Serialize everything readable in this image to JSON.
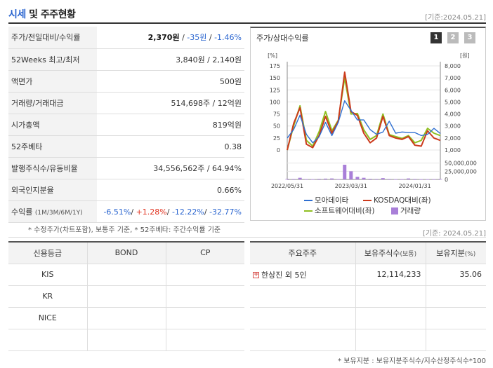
{
  "header": {
    "title_accent": "시세",
    "title_rest": " 및 주주현황",
    "base_date": "[기준:2024.05.21]"
  },
  "quote": {
    "price_change": {
      "label": "주가/전일대비/수익률",
      "price": "2,370원",
      "change": "-35원",
      "rate": "-1.46%"
    },
    "week52": {
      "label": "52Weeks 최고/최저",
      "value": "3,840원 / 2,140원"
    },
    "par": {
      "label": "액면가",
      "value": "500원"
    },
    "volume": {
      "label": "거래량/거래대금",
      "value": "514,698주 / 12억원"
    },
    "mktcap": {
      "label": "시가총액",
      "value": "819억원"
    },
    "beta": {
      "label": "52주베타",
      "value": "0.38"
    },
    "shares": {
      "label": "발행주식수/유동비율",
      "value": "34,556,562주 / 64.94%"
    },
    "foreign": {
      "label": "외국인지분율",
      "value": "0.66%"
    },
    "returns": {
      "label": "수익률",
      "label_sub": "(1M/3M/6M/1Y)",
      "r1": "-6.51%",
      "r2": "+1.28%",
      "r3": "-12.22%",
      "r4": "-32.77%"
    }
  },
  "chart_panel": {
    "title": "주가/상대수익률",
    "tabs": [
      "1",
      "2",
      "3"
    ]
  },
  "chart_data": {
    "type": "line",
    "x": [
      "2022/05/31",
      "2022/06/30",
      "2022/07/31",
      "2022/08/31",
      "2022/09/30",
      "2022/10/31",
      "2022/11/30",
      "2022/12/31",
      "2023/01/31",
      "2023/02/28",
      "2023/03/31",
      "2023/04/30",
      "2023/05/31",
      "2023/06/30",
      "2023/07/31",
      "2023/08/31",
      "2023/09/30",
      "2023/10/31",
      "2023/11/30",
      "2023/12/31",
      "2024/01/31",
      "2024/02/29",
      "2024/03/31",
      "2024/04/30",
      "2024/05/21"
    ],
    "xticks": [
      "2022/05/31",
      "2023/03/31",
      "2024/01/31"
    ],
    "y_left": {
      "unit": "[%]",
      "ticks": [
        175,
        150,
        125,
        100,
        75,
        50,
        25,
        0
      ],
      "range": [
        0,
        175
      ]
    },
    "y_right": {
      "unit": "[원]",
      "ticks": [
        "8,000",
        "7,000",
        "6,000",
        "5,000",
        "4,000",
        "3,000",
        "2,000",
        "1,000"
      ],
      "range": [
        1000,
        8000
      ]
    },
    "y_volume": {
      "ticks": [
        "50,000,000",
        "25,000,000",
        "0"
      ],
      "range": [
        0,
        60000000
      ]
    },
    "series": [
      {
        "name": "모아데이타",
        "color": "#2f6fd1",
        "axis": "right",
        "values": [
          2000,
          2700,
          3900,
          2300,
          1600,
          2100,
          3300,
          2200,
          3300,
          5100,
          4300,
          3500,
          3500,
          2700,
          2300,
          2500,
          3400,
          2400,
          2500,
          2450,
          2450,
          2200,
          2300,
          2800,
          2370
        ]
      },
      {
        "name": "KOSDAQ대비(좌)",
        "color": "#cc3a1c",
        "axis": "left",
        "values": [
          0,
          55,
          88,
          12,
          5,
          30,
          70,
          35,
          60,
          162,
          80,
          72,
          35,
          15,
          25,
          70,
          30,
          25,
          22,
          28,
          10,
          8,
          40,
          25,
          20
        ]
      },
      {
        "name": "소프트웨어대비(좌)",
        "color": "#8fbf21",
        "axis": "left",
        "values": [
          0,
          50,
          92,
          20,
          8,
          38,
          80,
          40,
          62,
          150,
          75,
          76,
          42,
          22,
          30,
          75,
          32,
          28,
          24,
          30,
          15,
          20,
          45,
          35,
          30
        ]
      },
      {
        "name": "거래량",
        "color": "#a97fd8",
        "axis": "volume",
        "type": "bar",
        "values": [
          2000000,
          1500000,
          5000000,
          1200000,
          1000000,
          1800000,
          2500000,
          3000000,
          1200000,
          45000000,
          25000000,
          8000000,
          5000000,
          2000000,
          1500000,
          4000000,
          1500000,
          1000000,
          1200000,
          3000000,
          1500000,
          1000000,
          1000000,
          1200000,
          1500000
        ]
      }
    ]
  },
  "legend": {
    "item1": "모아데이타",
    "item2": "KOSDAQ대비(좌)",
    "item3": "소프트웨어대비(좌)",
    "item4": "거래량"
  },
  "notes": {
    "left_note": "* 수정주가(차트포함), 보통주 기준, * 52주베타: 주간수익률 기준",
    "base_date2": "[기준: 2024.05.21]",
    "holder_note": "* 보유지분 : 보유지분주식수/지수산정주식수*100"
  },
  "credit": {
    "headers": [
      "신용등급",
      "BOND",
      "CP"
    ],
    "rows": [
      [
        "KIS",
        "",
        ""
      ],
      [
        "KR",
        "",
        ""
      ],
      [
        "NICE",
        "",
        ""
      ],
      [
        "",
        "",
        ""
      ]
    ]
  },
  "holders": {
    "h_name": "주요주주",
    "h_shares": "보유주식수",
    "h_shares_sub": "(보통)",
    "h_pct": "보유지분",
    "h_pct_sub": "(%)",
    "rows": [
      {
        "name": "한상진 외 5인",
        "shares": "12,114,233",
        "pct": "35.06"
      }
    ]
  },
  "colors": {
    "accent_blue": "#2b66d0",
    "up_red": "#e0311e"
  }
}
